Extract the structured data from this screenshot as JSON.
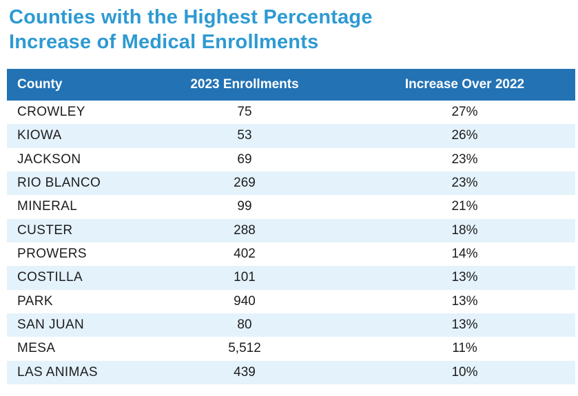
{
  "title": {
    "line1": "Counties with the Highest Percentage",
    "line2": "Increase of Medical Enrollments"
  },
  "table": {
    "columns": [
      "County",
      "2023 Enrollments",
      "Increase Over 2022"
    ],
    "rows": [
      {
        "county": "CROWLEY",
        "enrollments": "75",
        "increase": "27%"
      },
      {
        "county": "KIOWA",
        "enrollments": "53",
        "increase": "26%"
      },
      {
        "county": "JACKSON",
        "enrollments": "69",
        "increase": "23%"
      },
      {
        "county": "RIO BLANCO",
        "enrollments": "269",
        "increase": "23%"
      },
      {
        "county": "MINERAL",
        "enrollments": "99",
        "increase": "21%"
      },
      {
        "county": "CUSTER",
        "enrollments": "288",
        "increase": "18%"
      },
      {
        "county": "PROWERS",
        "enrollments": "402",
        "increase": "14%"
      },
      {
        "county": "COSTILLA",
        "enrollments": "101",
        "increase": "13%"
      },
      {
        "county": "PARK",
        "enrollments": "940",
        "increase": "13%"
      },
      {
        "county": "SAN JUAN",
        "enrollments": "80",
        "increase": "13%"
      },
      {
        "county": "MESA",
        "enrollments": "5,512",
        "increase": "11%"
      },
      {
        "county": "LAS ANIMAS",
        "enrollments": "439",
        "increase": "10%"
      }
    ]
  },
  "colors": {
    "title": "#2d9ad2",
    "header_bg": "#2272b4",
    "row_alt": "#e4f2fb",
    "text": "#1c1c1e"
  },
  "chart_data": {
    "type": "table",
    "title": "Counties with the Highest Percentage Increase of Medical Enrollments",
    "columns": [
      "County",
      "2023 Enrollments",
      "Increase Over 2022"
    ],
    "rows": [
      [
        "CROWLEY",
        75,
        "27%"
      ],
      [
        "KIOWA",
        53,
        "26%"
      ],
      [
        "JACKSON",
        69,
        "23%"
      ],
      [
        "RIO BLANCO",
        269,
        "23%"
      ],
      [
        "MINERAL",
        99,
        "21%"
      ],
      [
        "CUSTER",
        288,
        "18%"
      ],
      [
        "PROWERS",
        402,
        "14%"
      ],
      [
        "COSTILLA",
        101,
        "13%"
      ],
      [
        "PARK",
        940,
        "13%"
      ],
      [
        "SAN JUAN",
        80,
        "13%"
      ],
      [
        "MESA",
        5512,
        "11%"
      ],
      [
        "LAS ANIMAS",
        439,
        "10%"
      ]
    ],
    "layout": {
      "row_striping": "alternating white and light blue, starting white",
      "header_style": "solid blue bar with white bold text"
    }
  }
}
